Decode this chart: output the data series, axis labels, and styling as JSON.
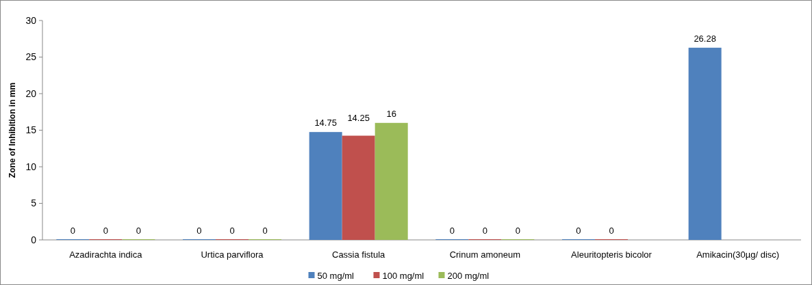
{
  "chart_data": {
    "type": "bar",
    "ylabel": "Zone of Inhibition in mm",
    "categories": [
      "Azadirachta indica",
      "Urtica parviflora",
      "Cassia fistula",
      "Crinum amoneum",
      "Aleuritopteris bicolor",
      "Amikacin(30µg/ disc)"
    ],
    "series": [
      {
        "name": "50 mg/ml",
        "color": "#4f81bd",
        "values": [
          0,
          0,
          14.75,
          0,
          0,
          26.28
        ]
      },
      {
        "name": "100 mg/ml",
        "color": "#c0504d",
        "values": [
          0,
          0,
          14.25,
          0,
          0,
          null
        ]
      },
      {
        "name": "200 mg/ml",
        "color": "#9bbb59",
        "values": [
          0,
          0,
          16,
          0,
          null,
          null
        ]
      }
    ],
    "ylim": [
      0,
      30
    ],
    "yticks": [
      0,
      5,
      10,
      15,
      20,
      25,
      30
    ],
    "grid": false,
    "legend": "bottom",
    "data_labels": true
  }
}
